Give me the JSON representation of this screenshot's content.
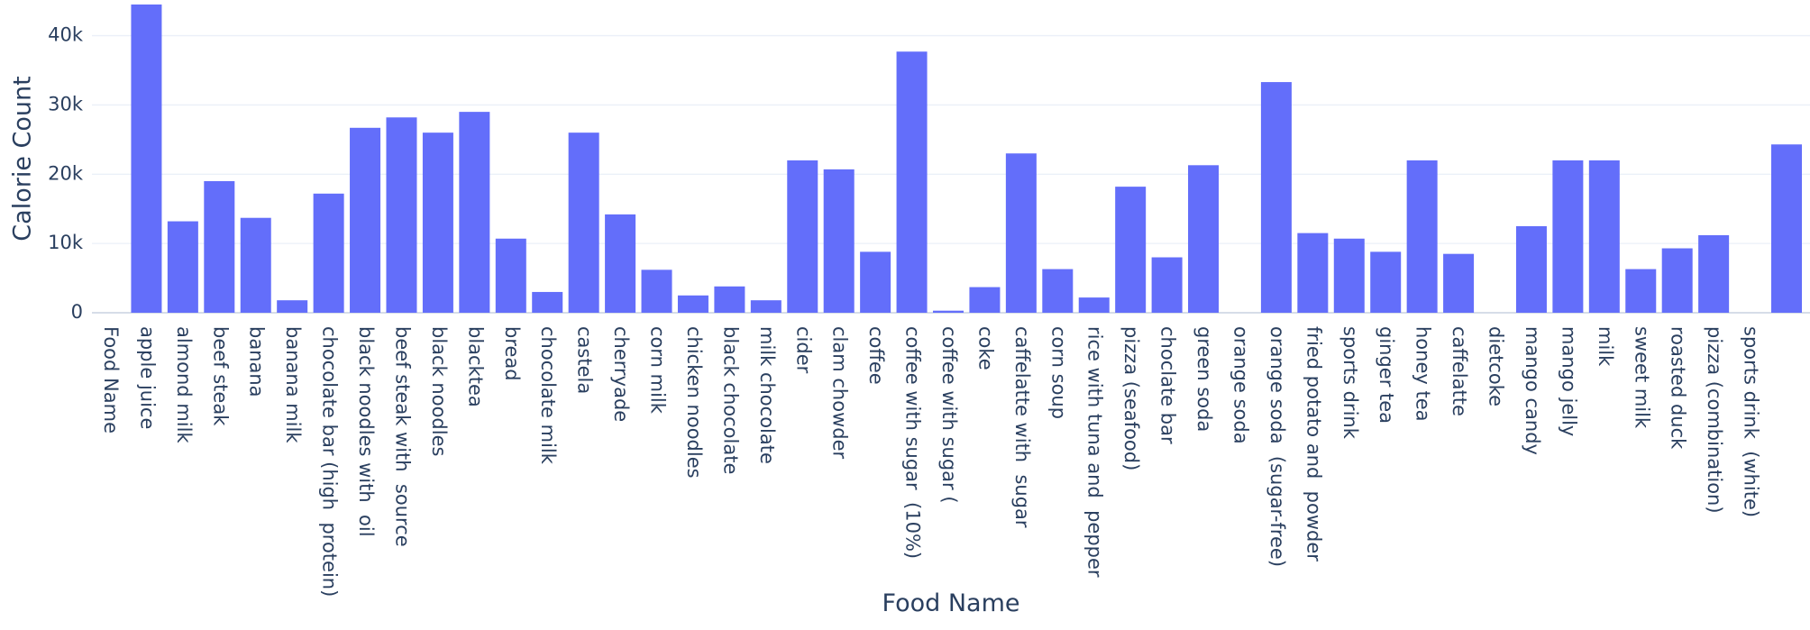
{
  "chart_data": {
    "type": "bar",
    "x_label": "Food Name",
    "y_label": "Calorie Count",
    "categories": [
      "Food Name",
      "apple juice",
      "almond milk",
      "beef steak",
      "banana",
      "banana milk",
      "chocolate bar (high  protein)",
      "black noodles with  oil",
      "beef steak with  source",
      "black noodles",
      "blacktea",
      "bread",
      "chocolate milk",
      "castela",
      "cherryade",
      "corn milk",
      "chicken noodles",
      "black chocolate",
      "milk chocolate",
      "cider",
      "clam chowder",
      "coffee",
      "coffee with sugar  (10%)",
      "coffee with sugar (",
      "coke",
      "caffelatte with  sugar",
      "corn soup",
      "rice with tuna and  pepper",
      "pizza (seafood)",
      "choclate bar",
      "green soda",
      "orange soda",
      "orange soda  (sugar-free)",
      "fried potato and  powder",
      "sports drink",
      "ginger tea",
      "honey tea",
      "caffelatte",
      "dietcoke",
      "mango candy",
      "mango jelly",
      "milk",
      "sweet milk",
      "roasted duck",
      "pizza (combination)",
      "sports drink  (white)",
      null
    ],
    "values": [
      0,
      44500,
      13200,
      19000,
      13700,
      1800,
      17200,
      26700,
      28200,
      26000,
      29000,
      10700,
      3000,
      26000,
      14200,
      6200,
      2500,
      3800,
      1800,
      22000,
      20700,
      8800,
      37700,
      300,
      3700,
      23000,
      6300,
      2200,
      18200,
      8000,
      21300,
      0,
      33300,
      11500,
      10700,
      8800,
      22000,
      8500,
      0,
      12500,
      22000,
      22000,
      6300,
      9300,
      11200,
      0,
      24300
    ],
    "color": "#636efa",
    "ylim": [
      0,
      44500
    ],
    "yticks": [
      0,
      {
        "value": 10000,
        "label": "10k"
      },
      {
        "value": 20000,
        "label": "20k"
      },
      {
        "value": 30000,
        "label": "30k"
      },
      {
        "value": 40000,
        "label": "40k"
      }
    ],
    "grid": true
  }
}
